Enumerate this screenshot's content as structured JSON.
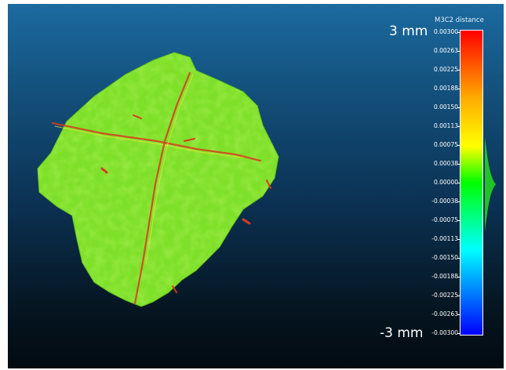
{
  "scale": {
    "title": "M3C2 distance",
    "max_label": "3 mm",
    "min_label": "-3 mm",
    "ticks": [
      "0.00300",
      "0.00263",
      "0.00225",
      "0.00188",
      "0.00150",
      "0.00113",
      "0.00075",
      "0.00038",
      "0.00000",
      "-0.00038",
      "-0.00075",
      "-0.00113",
      "-0.00150",
      "-0.00188",
      "-0.00225",
      "-0.00263",
      "-0.00300"
    ],
    "colors": {
      "top": "#ff0000",
      "upper": "#ffaa00",
      "yellow": "#ffff00",
      "mid": "#00ff00",
      "lower": "#00ffff",
      "bottom": "#0000ff"
    }
  },
  "cloud": {
    "base_color": "#7fe02a",
    "crack_color": "#d83a1e",
    "background_top": "#1b6aa0",
    "background_bottom": "#020a11"
  }
}
